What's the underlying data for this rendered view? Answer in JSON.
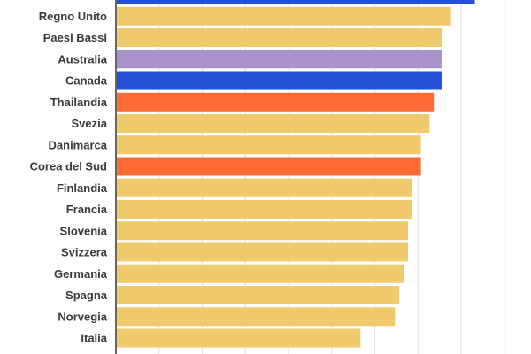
{
  "chart_data": {
    "type": "bar",
    "orientation": "horizontal",
    "categories": [
      "",
      "Regno Unito",
      "Paesi Bassi",
      "Australia",
      "Canada",
      "Thailandia",
      "Svezia",
      "Danimarca",
      "Corea del Sud",
      "Finlandia",
      "Francia",
      "Slovenia",
      "Svizzera",
      "Germania",
      "Spagna",
      "Norvegia",
      "Italia"
    ],
    "values": [
      83,
      77.5,
      75.5,
      75.5,
      75.5,
      73.5,
      72.5,
      70.5,
      70.5,
      68.5,
      68.5,
      67.5,
      67.5,
      66.5,
      65.5,
      64.5,
      56.5
    ],
    "colors": [
      "#2352d8",
      "#f0cb6e",
      "#f0cb6e",
      "#aa92cd",
      "#2352d8",
      "#ff6b35",
      "#f0cb6e",
      "#f0cb6e",
      "#ff6b35",
      "#f0cb6e",
      "#f0cb6e",
      "#f0cb6e",
      "#f0cb6e",
      "#f0cb6e",
      "#f0cb6e",
      "#f0cb6e",
      "#f0cb6e"
    ],
    "xlim": [
      0,
      90
    ],
    "grid": true,
    "xlabel": "",
    "ylabel": "",
    "title": ""
  }
}
